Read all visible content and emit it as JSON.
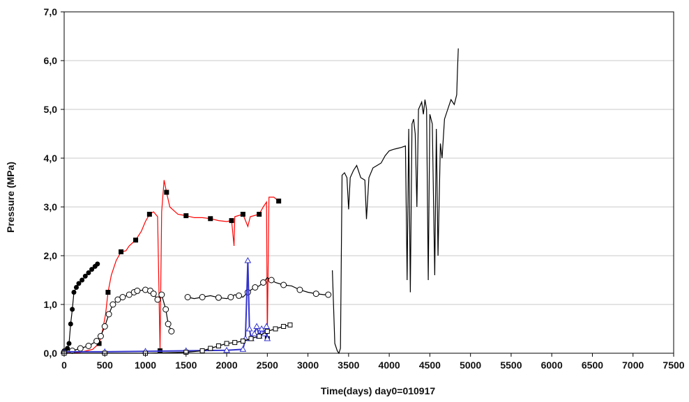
{
  "chart_data": {
    "type": "line",
    "title": "",
    "xlabel": "Time(days)  day0=010917",
    "ylabel": "Pressure (MPa)",
    "xlim": [
      0,
      7500
    ],
    "ylim": [
      0,
      7
    ],
    "x_ticks": [
      0,
      500,
      1000,
      1500,
      2000,
      2500,
      3000,
      3500,
      4000,
      4500,
      5000,
      5500,
      6000,
      6500,
      7000,
      7500
    ],
    "x_tick_labels": [
      "0",
      "500",
      "1000",
      "1500",
      "2000",
      "2500",
      "3000",
      "3500",
      "4000",
      "4500",
      "5000",
      "5500",
      "6000",
      "6500",
      "7000",
      "7500"
    ],
    "y_ticks": [
      0,
      1,
      2,
      3,
      4,
      5,
      6,
      7
    ],
    "y_tick_labels": [
      "0,0",
      "1,0",
      "2,0",
      "3,0",
      "4,0",
      "5,0",
      "6,0",
      "7,0"
    ],
    "grid": "horizontal",
    "colors": {
      "red": "#ff0000",
      "blue": "#3333cc",
      "black": "#000000"
    },
    "series": [
      {
        "color": "#000000",
        "marker": "filled-circle",
        "line": true,
        "points": [
          [
            0,
            0.05
          ],
          [
            40,
            0.1
          ],
          [
            60,
            0.2
          ],
          [
            80,
            0.6
          ],
          [
            100,
            0.9
          ],
          [
            120,
            1.25
          ],
          [
            150,
            1.35
          ],
          [
            180,
            1.43
          ],
          [
            220,
            1.5
          ],
          [
            260,
            1.58
          ],
          [
            300,
            1.65
          ],
          [
            340,
            1.72
          ],
          [
            380,
            1.78
          ],
          [
            410,
            1.83
          ]
        ]
      },
      {
        "color": "#ff0000",
        "marker": "filled-square",
        "line": true,
        "points": [
          [
            0,
            0.0
          ],
          [
            200,
            0.02
          ],
          [
            350,
            0.08
          ],
          [
            430,
            0.2
          ],
          [
            470,
            0.45
          ],
          [
            510,
            0.8
          ],
          [
            540,
            1.25
          ],
          [
            580,
            1.6
          ],
          [
            640,
            1.9
          ],
          [
            700,
            2.08
          ],
          [
            760,
            2.1
          ],
          [
            800,
            2.2
          ],
          [
            880,
            2.32
          ],
          [
            950,
            2.5
          ],
          [
            1000,
            2.7
          ],
          [
            1050,
            2.85
          ],
          [
            1100,
            2.9
          ],
          [
            1150,
            2.8
          ],
          [
            1180,
            0.05
          ],
          [
            1200,
            2.9
          ],
          [
            1230,
            3.55
          ],
          [
            1260,
            3.3
          ],
          [
            1300,
            3.0
          ],
          [
            1400,
            2.85
          ],
          [
            1500,
            2.82
          ],
          [
            1600,
            2.78
          ],
          [
            1700,
            2.78
          ],
          [
            1800,
            2.76
          ],
          [
            1900,
            2.72
          ],
          [
            2000,
            2.7
          ],
          [
            2060,
            2.72
          ],
          [
            2090,
            2.2
          ],
          [
            2100,
            2.8
          ],
          [
            2200,
            2.85
          ],
          [
            2260,
            2.6
          ],
          [
            2290,
            2.8
          ],
          [
            2400,
            2.85
          ],
          [
            2450,
            3.0
          ],
          [
            2490,
            3.1
          ],
          [
            2500,
            0.3
          ],
          [
            2520,
            3.2
          ],
          [
            2580,
            3.2
          ],
          [
            2640,
            3.12
          ]
        ]
      },
      {
        "color": "#000000",
        "marker": "open-circle",
        "line": true,
        "points": [
          [
            0,
            0.02
          ],
          [
            100,
            0.05
          ],
          [
            200,
            0.1
          ],
          [
            300,
            0.15
          ],
          [
            400,
            0.25
          ],
          [
            450,
            0.35
          ],
          [
            500,
            0.55
          ],
          [
            550,
            0.8
          ],
          [
            600,
            1.0
          ],
          [
            660,
            1.1
          ],
          [
            720,
            1.15
          ],
          [
            800,
            1.2
          ],
          [
            860,
            1.25
          ],
          [
            900,
            1.28
          ],
          [
            1000,
            1.3
          ],
          [
            1060,
            1.28
          ],
          [
            1100,
            1.22
          ],
          [
            1150,
            1.1
          ],
          [
            1200,
            1.2
          ],
          [
            1250,
            0.9
          ],
          [
            1280,
            0.6
          ],
          [
            1320,
            0.45
          ]
        ]
      },
      {
        "color": "#000000",
        "marker": "open-circle",
        "line": true,
        "points": [
          [
            1520,
            1.15
          ],
          [
            1600,
            1.12
          ],
          [
            1700,
            1.15
          ],
          [
            1800,
            1.18
          ],
          [
            1900,
            1.14
          ],
          [
            2000,
            1.12
          ],
          [
            2050,
            1.15
          ],
          [
            2100,
            1.2
          ],
          [
            2150,
            1.18
          ],
          [
            2200,
            1.15
          ],
          [
            2260,
            1.25
          ],
          [
            2300,
            1.3
          ],
          [
            2350,
            1.35
          ],
          [
            2400,
            1.38
          ],
          [
            2450,
            1.45
          ],
          [
            2500,
            1.55
          ],
          [
            2550,
            1.5
          ],
          [
            2600,
            1.45
          ],
          [
            2700,
            1.4
          ],
          [
            2800,
            1.38
          ],
          [
            2900,
            1.3
          ],
          [
            3000,
            1.25
          ],
          [
            3100,
            1.22
          ],
          [
            3200,
            1.2
          ],
          [
            3250,
            1.2
          ]
        ]
      },
      {
        "color": "#000000",
        "marker": "none",
        "line": true,
        "points": [
          [
            3300,
            1.7
          ],
          [
            3330,
            0.2
          ],
          [
            3360,
            0.05
          ],
          [
            3380,
            0.0
          ],
          [
            3400,
            0.1
          ],
          [
            3420,
            3.65
          ],
          [
            3450,
            3.7
          ],
          [
            3480,
            3.6
          ],
          [
            3500,
            2.95
          ],
          [
            3520,
            3.6
          ],
          [
            3560,
            3.75
          ],
          [
            3600,
            3.85
          ],
          [
            3650,
            3.6
          ],
          [
            3700,
            3.55
          ],
          [
            3720,
            2.75
          ],
          [
            3750,
            3.6
          ],
          [
            3800,
            3.8
          ],
          [
            3850,
            3.85
          ],
          [
            3900,
            3.9
          ],
          [
            3950,
            4.05
          ],
          [
            4000,
            4.15
          ],
          [
            4050,
            4.18
          ],
          [
            4100,
            4.2
          ],
          [
            4150,
            4.22
          ],
          [
            4200,
            4.25
          ],
          [
            4220,
            1.5
          ],
          [
            4240,
            4.6
          ],
          [
            4260,
            1.25
          ],
          [
            4280,
            4.7
          ],
          [
            4300,
            4.8
          ],
          [
            4320,
            4.5
          ],
          [
            4340,
            3.0
          ],
          [
            4360,
            5.0
          ],
          [
            4400,
            5.15
          ],
          [
            4420,
            4.9
          ],
          [
            4440,
            5.2
          ],
          [
            4460,
            5.0
          ],
          [
            4480,
            1.5
          ],
          [
            4500,
            4.9
          ],
          [
            4530,
            4.7
          ],
          [
            4560,
            1.6
          ],
          [
            4580,
            4.6
          ],
          [
            4600,
            2.0
          ],
          [
            4630,
            4.3
          ],
          [
            4650,
            4.0
          ],
          [
            4680,
            4.8
          ],
          [
            4720,
            5.0
          ],
          [
            4760,
            5.2
          ],
          [
            4800,
            5.1
          ],
          [
            4830,
            5.3
          ],
          [
            4840,
            5.8
          ],
          [
            4850,
            6.25
          ]
        ]
      },
      {
        "color": "#3333cc",
        "marker": "open-triangle",
        "line": true,
        "points": [
          [
            0,
            0.03
          ],
          [
            500,
            0.03
          ],
          [
            1000,
            0.04
          ],
          [
            1500,
            0.05
          ],
          [
            2000,
            0.06
          ],
          [
            2200,
            0.08
          ],
          [
            2230,
            0.3
          ],
          [
            2260,
            1.9
          ],
          [
            2280,
            0.5
          ],
          [
            2300,
            0.3
          ],
          [
            2340,
            0.4
          ],
          [
            2370,
            0.55
          ],
          [
            2400,
            0.35
          ],
          [
            2430,
            0.5
          ],
          [
            2460,
            0.4
          ],
          [
            2490,
            0.55
          ],
          [
            2500,
            0.3
          ]
        ]
      },
      {
        "color": "#000000",
        "marker": "open-square",
        "line": true,
        "points": [
          [
            0,
            0.0
          ],
          [
            500,
            0.0
          ],
          [
            1000,
            0.0
          ],
          [
            1500,
            0.02
          ],
          [
            1700,
            0.05
          ],
          [
            1800,
            0.1
          ],
          [
            1900,
            0.15
          ],
          [
            2000,
            0.2
          ],
          [
            2100,
            0.22
          ],
          [
            2200,
            0.25
          ],
          [
            2300,
            0.3
          ],
          [
            2400,
            0.35
          ],
          [
            2500,
            0.45
          ],
          [
            2600,
            0.5
          ],
          [
            2700,
            0.55
          ],
          [
            2780,
            0.58
          ]
        ]
      }
    ]
  }
}
